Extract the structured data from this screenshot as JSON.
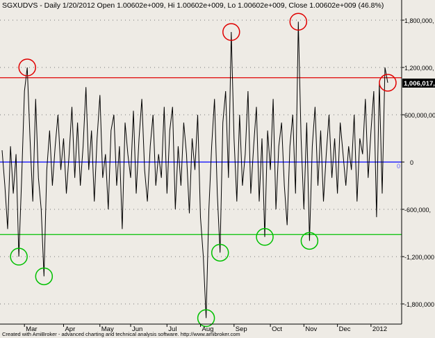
{
  "header": {
    "title": "SGXUDVS - Daily 1/20/2012 Open 1.00602e+009, Hi 1.00602e+009, Lo 1.00602e+009, Close 1.00602e+009 (46.8%)"
  },
  "footer": {
    "text": "Created with AmiBroker - advanced charting and technical analysis software. http://www.amibroker.com"
  },
  "chart_data": {
    "type": "line",
    "title": "SGXUDVS - Daily",
    "x_tick_labels": [
      "Mar",
      "Apr",
      "May",
      "Jun",
      "Jul",
      "Aug",
      "Sep",
      "Oct",
      "Nov",
      "Dec",
      "2012"
    ],
    "y_ticks": [
      1800,
      1200,
      600,
      0,
      -600,
      -1200,
      -1800
    ],
    "y_tick_labels": [
      "1,800,000,",
      "1,200,000,",
      "600,000,00",
      "0",
      "-600,000,",
      "-1,200,000",
      "-1,800,000"
    ],
    "y_unit_note": "values in millions",
    "ylim": [
      -2050,
      1950
    ],
    "last_value_label": "1,006,017,",
    "zero_label": "0",
    "grid": "dotted horizontal",
    "series_color": "#000000",
    "values": [
      150,
      -300,
      -850,
      200,
      -400,
      100,
      -1200,
      -200,
      900,
      1200,
      300,
      -500,
      800,
      -200,
      -600,
      -1450,
      -100,
      400,
      -300,
      200,
      600,
      -100,
      300,
      -400,
      100,
      700,
      -200,
      500,
      -300,
      200,
      950,
      -100,
      400,
      -500,
      300,
      850,
      -200,
      100,
      -600,
      400,
      600,
      -300,
      200,
      -850,
      500,
      100,
      -200,
      650,
      -400,
      300,
      800,
      -100,
      -500,
      200,
      600,
      -300,
      100,
      -200,
      700,
      -400,
      400,
      700,
      -600,
      200,
      -300,
      500,
      100,
      -650,
      300,
      -100,
      600,
      -700,
      -1200,
      -1980,
      -600,
      200,
      800,
      -400,
      -1150,
      500,
      900,
      -200,
      1650,
      300,
      -500,
      600,
      -300,
      100,
      900,
      -400,
      200,
      700,
      -500,
      300,
      -950,
      400,
      -100,
      800,
      -600,
      200,
      500,
      -300,
      -800,
      200,
      600,
      -400,
      1780,
      300,
      -600,
      500,
      -1000,
      200,
      700,
      -300,
      400,
      -500,
      100,
      600,
      -200,
      300,
      -400,
      500,
      100,
      -300,
      200,
      -100,
      600,
      -500,
      300,
      100,
      800,
      -200,
      400,
      900,
      -700,
      1000,
      -400,
      1200,
      1006
    ],
    "month_start_index": [
      8,
      22,
      35,
      46,
      59,
      71,
      83,
      96,
      108,
      120,
      132
    ],
    "hlines": [
      {
        "value": 1070,
        "color": "#e00000"
      },
      {
        "value": 0,
        "color": "#0000ff"
      },
      {
        "value": -920,
        "color": "#00c000"
      }
    ],
    "circles": [
      {
        "index": 9,
        "color": "#e00000"
      },
      {
        "index": 82,
        "color": "#e00000"
      },
      {
        "index": 106,
        "color": "#e00000"
      },
      {
        "index": 138,
        "color": "#e00000"
      },
      {
        "index": 6,
        "color": "#00c000"
      },
      {
        "index": 15,
        "color": "#00c000"
      },
      {
        "index": 73,
        "color": "#00c000"
      },
      {
        "index": 78,
        "color": "#00c000"
      },
      {
        "index": 94,
        "color": "#00c000"
      },
      {
        "index": 110,
        "color": "#00c000"
      }
    ]
  }
}
